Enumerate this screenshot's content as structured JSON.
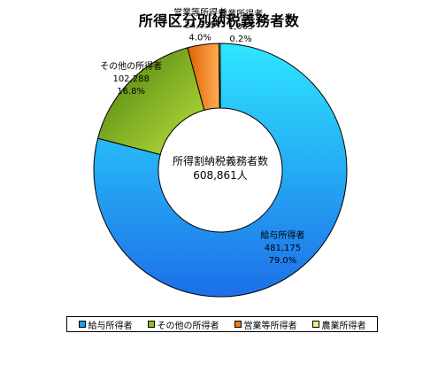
{
  "chart_data": {
    "type": "pie",
    "title": "所得区分別納税義務者数",
    "center_label": [
      "所得割納税義務者数",
      "608,861人"
    ],
    "categories": [
      "給与所得者",
      "その他の所得者",
      "営業等所得者",
      "農業所得者"
    ],
    "values": [
      481175,
      102288,
      24335,
      1063
    ],
    "value_labels": [
      "481,175",
      "102,288",
      "24,335",
      "1,063"
    ],
    "percent_labels": [
      "79.0%",
      "16.8%",
      "4.0%",
      "0.2%"
    ],
    "colors": [
      "#1f9ef5",
      "#8fbf20",
      "#f37d14",
      "#f5ee8a"
    ],
    "legend": [
      "給与所得者",
      "その他の所得者",
      "営業等所得者",
      "農業所得者"
    ],
    "legend_position": "bottom"
  }
}
